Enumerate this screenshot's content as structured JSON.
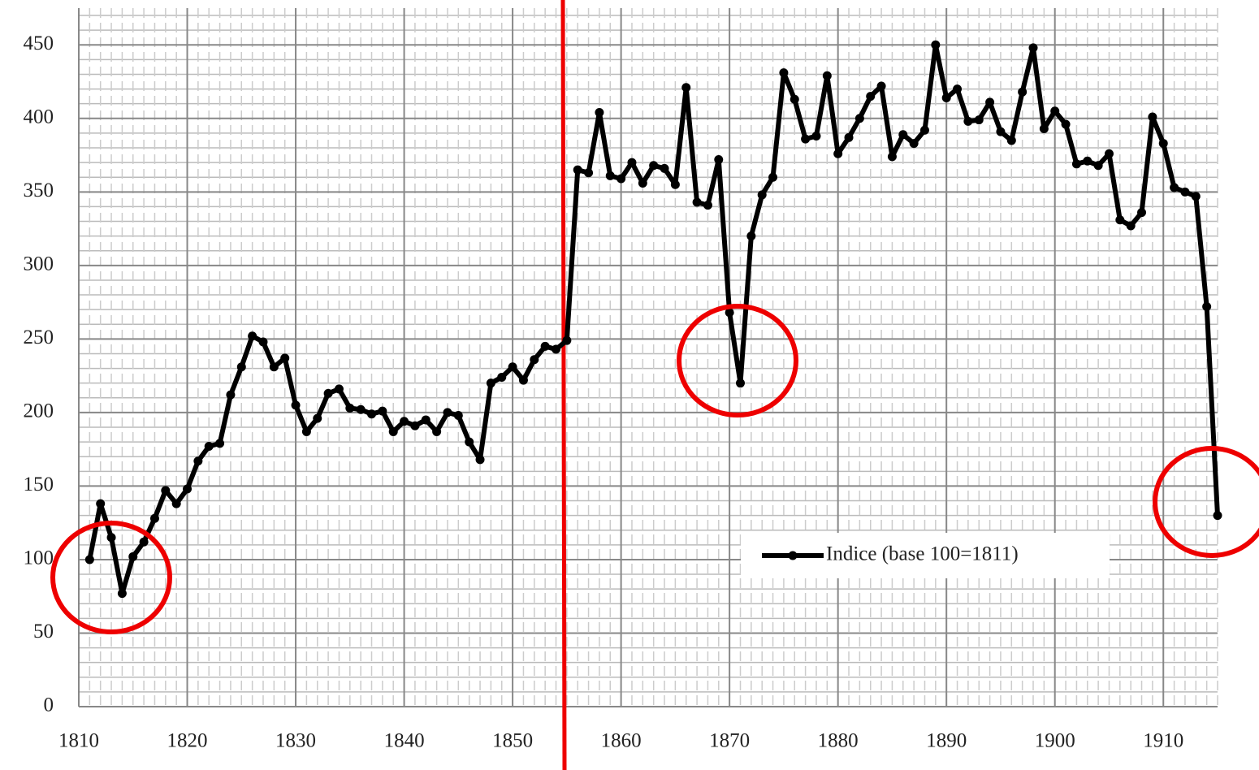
{
  "chart_data": {
    "type": "line",
    "x": [
      1811,
      1812,
      1813,
      1814,
      1815,
      1816,
      1817,
      1818,
      1819,
      1820,
      1821,
      1822,
      1823,
      1824,
      1825,
      1826,
      1827,
      1828,
      1829,
      1830,
      1831,
      1832,
      1833,
      1834,
      1835,
      1836,
      1837,
      1838,
      1839,
      1840,
      1841,
      1842,
      1843,
      1844,
      1845,
      1846,
      1847,
      1848,
      1849,
      1850,
      1851,
      1852,
      1853,
      1854,
      1855,
      1856,
      1857,
      1858,
      1859,
      1860,
      1861,
      1862,
      1863,
      1864,
      1865,
      1866,
      1867,
      1868,
      1869,
      1870,
      1871,
      1872,
      1873,
      1874,
      1875,
      1876,
      1877,
      1878,
      1879,
      1880,
      1881,
      1882,
      1883,
      1884,
      1885,
      1886,
      1887,
      1888,
      1889,
      1890,
      1891,
      1892,
      1893,
      1894,
      1895,
      1896,
      1897,
      1898,
      1899,
      1900,
      1901,
      1902,
      1903,
      1904,
      1905,
      1906,
      1907,
      1908,
      1909,
      1910,
      1911,
      1912,
      1913,
      1914,
      1915
    ],
    "series": [
      {
        "name": "Indice (base 100=1811)",
        "color": "#000000",
        "values": [
          100,
          138,
          115,
          77,
          102,
          112,
          128,
          147,
          138,
          148,
          167,
          177,
          179,
          212,
          231,
          252,
          248,
          231,
          237,
          205,
          187,
          196,
          213,
          216,
          203,
          202,
          199,
          201,
          187,
          194,
          191,
          195,
          187,
          200,
          198,
          180,
          168,
          220,
          224,
          231,
          222,
          236,
          245,
          243,
          249,
          365,
          363,
          404,
          361,
          359,
          370,
          356,
          368,
          366,
          355,
          421,
          343,
          341,
          372,
          268,
          220,
          320,
          348,
          360,
          431,
          413,
          386,
          388,
          429,
          376,
          387,
          400,
          415,
          422,
          374,
          389,
          383,
          392,
          450,
          414,
          420,
          398,
          399,
          411,
          391,
          385,
          418,
          448,
          393,
          405,
          396,
          369,
          371,
          368,
          376,
          331,
          327,
          336,
          401,
          383,
          353,
          350,
          347,
          272,
          130
        ]
      }
    ],
    "xlim": [
      1810,
      1915
    ],
    "xticks": [
      1810,
      1820,
      1830,
      1840,
      1850,
      1860,
      1870,
      1880,
      1890,
      1900,
      1910
    ],
    "ylim": [
      0,
      475
    ],
    "yticks": [
      0,
      50,
      100,
      150,
      200,
      250,
      300,
      350,
      400,
      450
    ],
    "grid": true,
    "minor_grid": true,
    "legend": "lower right"
  }
}
